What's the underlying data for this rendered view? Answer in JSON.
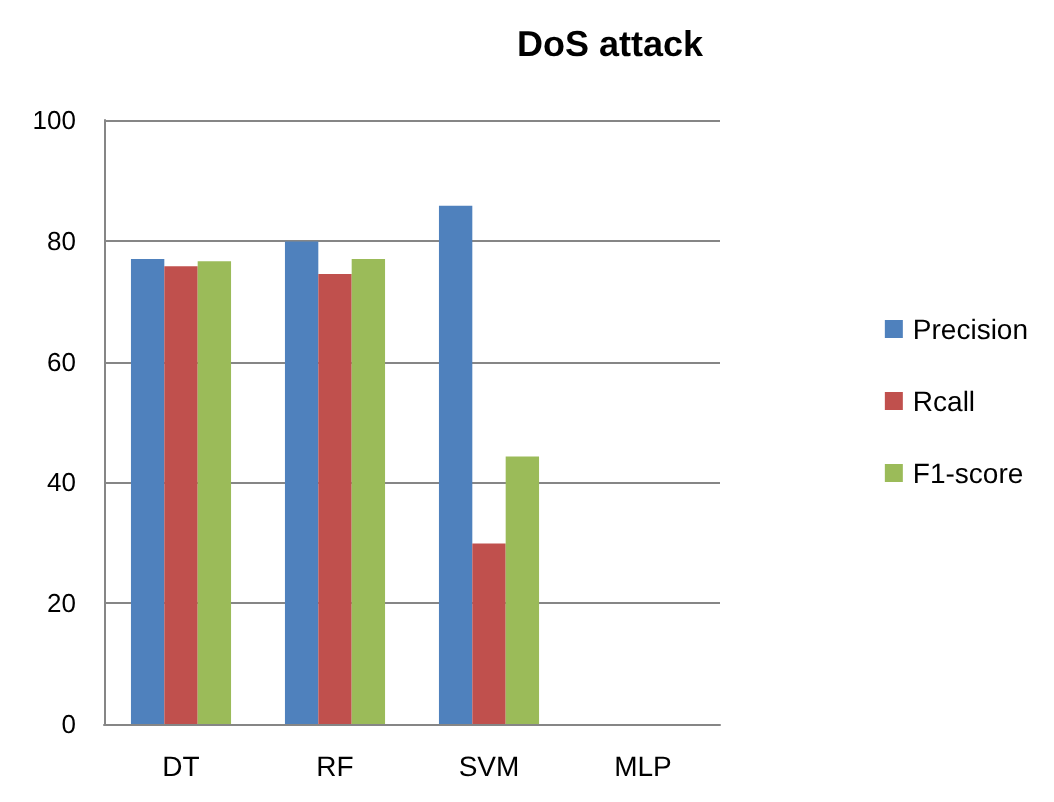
{
  "chart_data": {
    "type": "bar",
    "title": "DoS attack",
    "categories": [
      "DT",
      "RF",
      "SVM",
      "MLP"
    ],
    "series": [
      {
        "name": "Precision",
        "color": "#4f81bd",
        "values": [
          77.0,
          79.9,
          85.8,
          null
        ]
      },
      {
        "name": "Rcall",
        "color": "#c0504d",
        "values": [
          75.8,
          74.5,
          29.9,
          null
        ]
      },
      {
        "name": "F1-score",
        "color": "#9bbb59",
        "values": [
          76.6,
          77.0,
          44.3,
          null
        ]
      }
    ],
    "ylim": [
      0,
      100
    ],
    "yticks": [
      0,
      20,
      40,
      60,
      80,
      100
    ],
    "grid": "y",
    "legend": "right"
  }
}
